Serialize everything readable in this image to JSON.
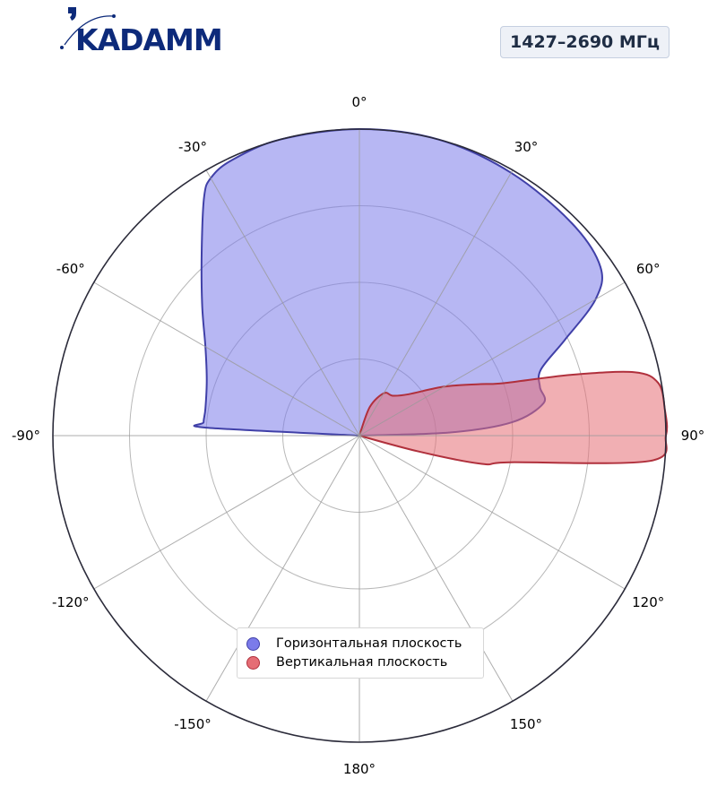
{
  "logo": {
    "text": "KADAMM",
    "color": "#0d2a7a"
  },
  "band_label": "1427–2690 МГц",
  "chart_data": {
    "type": "polar-area",
    "angle_zero": "top",
    "angle_direction": "clockwise",
    "rlim": [
      0,
      1
    ],
    "grid": true,
    "legend_placement": "bottom-center",
    "theta_tick_labels": [
      "0°",
      "30°",
      "60°",
      "90°",
      "120°",
      "150°",
      "180°",
      "-150°",
      "-120°",
      "-90°",
      "-60°",
      "-30°"
    ],
    "theta_ticks": [
      0,
      30,
      60,
      90,
      120,
      150,
      180,
      -150,
      -120,
      -90,
      -60,
      -30
    ],
    "r_rings": [
      0.25,
      0.5,
      0.75,
      1.0
    ],
    "series": [
      {
        "name": "Горизонтальная плоскость",
        "fill": "#7b7bea",
        "fill_opacity": 0.55,
        "stroke": "#4040a8",
        "points": [
          {
            "theta": -90,
            "r": 0
          },
          {
            "theta": -87,
            "r": 0.5
          },
          {
            "theta": -85,
            "r": 0.51
          },
          {
            "theta": -80,
            "r": 0.51
          },
          {
            "theta": -70,
            "r": 0.53
          },
          {
            "theta": -60,
            "r": 0.58
          },
          {
            "theta": -50,
            "r": 0.67
          },
          {
            "theta": -40,
            "r": 0.8
          },
          {
            "theta": -33,
            "r": 0.93
          },
          {
            "theta": -30,
            "r": 0.97
          },
          {
            "theta": -25,
            "r": 0.99
          },
          {
            "theta": -15,
            "r": 1.0
          },
          {
            "theta": 0,
            "r": 1.0
          },
          {
            "theta": 15,
            "r": 1.0
          },
          {
            "theta": 30,
            "r": 0.99
          },
          {
            "theta": 45,
            "r": 0.98
          },
          {
            "theta": 55,
            "r": 0.96
          },
          {
            "theta": 60,
            "r": 0.89
          },
          {
            "theta": 65,
            "r": 0.74
          },
          {
            "theta": 70,
            "r": 0.63
          },
          {
            "theta": 75,
            "r": 0.61
          },
          {
            "theta": 80,
            "r": 0.61
          },
          {
            "theta": 85,
            "r": 0.5
          },
          {
            "theta": 88,
            "r": 0.3
          },
          {
            "theta": 90,
            "r": 0
          }
        ]
      },
      {
        "name": "Вертикальная плоскость",
        "fill": "#e56d75",
        "fill_opacity": 0.55,
        "stroke": "#b0303c",
        "points": [
          {
            "theta": 0,
            "r": 0
          },
          {
            "theta": 20,
            "r": 0.1
          },
          {
            "theta": 30,
            "r": 0.16
          },
          {
            "theta": 40,
            "r": 0.17
          },
          {
            "theta": 50,
            "r": 0.21
          },
          {
            "theta": 60,
            "r": 0.32
          },
          {
            "theta": 67,
            "r": 0.43
          },
          {
            "theta": 70,
            "r": 0.5
          },
          {
            "theta": 74,
            "r": 0.72
          },
          {
            "theta": 77,
            "r": 0.92
          },
          {
            "theta": 80,
            "r": 0.99
          },
          {
            "theta": 85,
            "r": 1.0
          },
          {
            "theta": 90,
            "r": 1.0
          },
          {
            "theta": 95,
            "r": 0.95
          },
          {
            "theta": 100,
            "r": 0.5
          },
          {
            "theta": 103,
            "r": 0.41
          },
          {
            "theta": 105,
            "r": 0.2
          },
          {
            "theta": 110,
            "r": 0
          }
        ]
      }
    ]
  }
}
